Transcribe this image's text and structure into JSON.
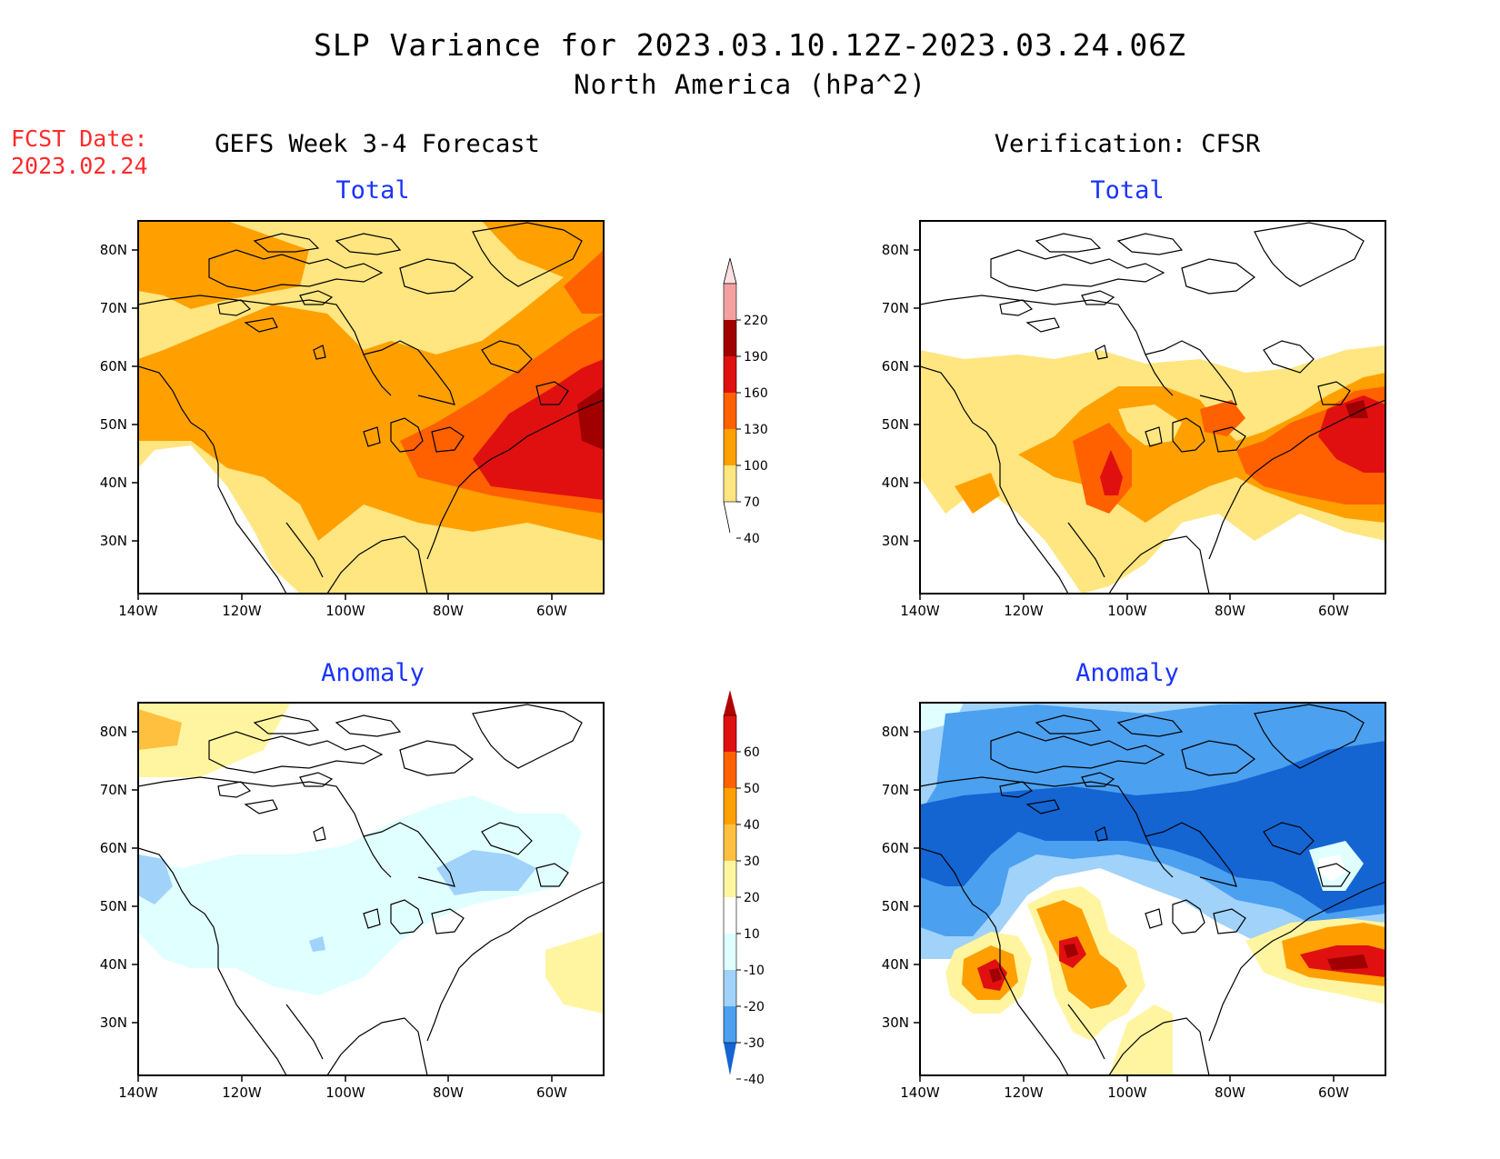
{
  "header": {
    "title": "SLP Variance for 2023.03.10.12Z-2023.03.24.06Z",
    "subtitle": "North America (hPa^2)",
    "fcst_label": "FCST Date:",
    "fcst_date": "2023.02.24"
  },
  "columns": {
    "left": "GEFS Week 3-4 Forecast",
    "right": "Verification: CFSR"
  },
  "panels": [
    {
      "id": "forecast-total",
      "title": "Total"
    },
    {
      "id": "verification-total",
      "title": "Total"
    },
    {
      "id": "forecast-anomaly",
      "title": "Anomaly"
    },
    {
      "id": "verification-anomaly",
      "title": "Anomaly"
    }
  ],
  "axes": {
    "lat_ticks": [
      "80N",
      "70N",
      "60N",
      "50N",
      "40N",
      "30N"
    ],
    "lon_ticks": [
      "140W",
      "120W",
      "100W",
      "80W",
      "60W"
    ]
  },
  "colorbars": {
    "total": {
      "labels": [
        "220",
        "190",
        "160",
        "130",
        "100",
        "70",
        "40"
      ],
      "colors": [
        "#fbe0e0",
        "#f4a0a0",
        "#a00000",
        "#e01010",
        "#ff6000",
        "#ffa000",
        "#ffe680"
      ]
    },
    "anomaly": {
      "labels": [
        "60",
        "50",
        "40",
        "30",
        "20",
        "10",
        "-10",
        "-20",
        "-30",
        "-40"
      ],
      "colors": [
        "#b00000",
        "#e01010",
        "#ff6000",
        "#ffa000",
        "#ffc040",
        "#fff5a0",
        "#ffffff",
        "#e0ffff",
        "#a0d2fa",
        "#4ba0f0",
        "#1464d2"
      ]
    }
  }
}
